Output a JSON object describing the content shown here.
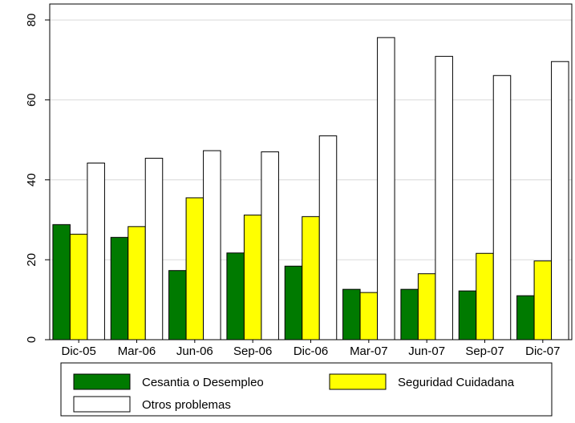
{
  "chart_data": {
    "type": "bar",
    "categories": [
      "Dic-05",
      "Mar-06",
      "Jun-06",
      "Sep-06",
      "Dic-06",
      "Mar-07",
      "Jun-07",
      "Sep-07",
      "Dic-07"
    ],
    "series": [
      {
        "name": "Cesantia o Desempleo",
        "color": "#007a00",
        "values": [
          28.8,
          25.6,
          17.3,
          21.7,
          18.4,
          12.6,
          12.6,
          12.2,
          11.0
        ]
      },
      {
        "name": "Seguridad Cuidadana",
        "color": "#ffff00",
        "values": [
          26.4,
          28.3,
          35.5,
          31.2,
          30.8,
          11.8,
          16.5,
          21.6,
          19.7
        ]
      },
      {
        "name": "Otros problemas",
        "color": "#ffffff",
        "values": [
          44.2,
          45.4,
          47.3,
          47.0,
          51.0,
          75.6,
          70.9,
          66.1,
          69.6
        ]
      }
    ],
    "ylim": [
      0,
      84
    ],
    "yticks": [
      0,
      20,
      40,
      60,
      80
    ],
    "title": "",
    "xlabel": "",
    "ylabel": "",
    "grid": "horizontal",
    "legend_position": "bottom"
  }
}
